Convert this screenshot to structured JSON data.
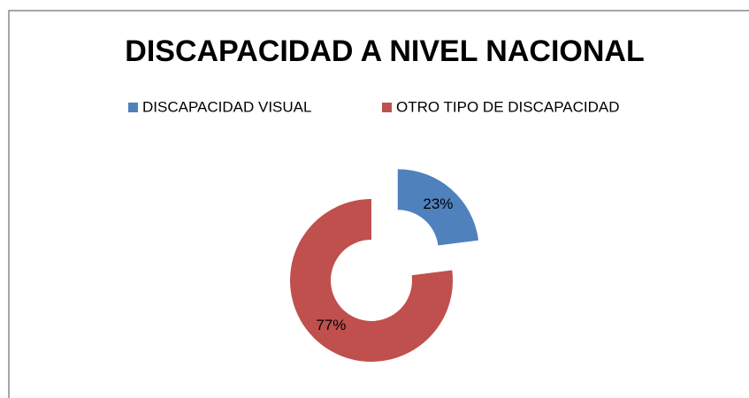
{
  "chart_data": {
    "type": "donut",
    "title": "DISCAPACIDAD A NIVEL NACIONAL",
    "categories": [
      "DISCAPACIDAD VISUAL",
      "OTRO TIPO DE DISCAPACIDAD"
    ],
    "values": [
      23,
      77
    ],
    "value_labels": [
      "23%",
      "77%"
    ],
    "colors": [
      "#4f81bd",
      "#c0504d"
    ],
    "legend": "top"
  }
}
